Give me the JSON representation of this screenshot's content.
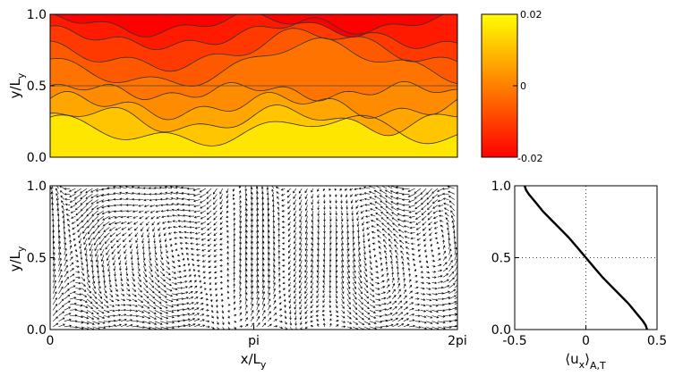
{
  "chart_data": [
    {
      "type": "heatmap",
      "panel": "top-left",
      "xlim": [
        0,
        6.2832
      ],
      "ylim": [
        0,
        1
      ],
      "y_ticks": [
        "0.0",
        "0.5",
        "1.0"
      ],
      "ylabel": {
        "main": "y/L",
        "sub": "y"
      },
      "color_range": [
        -0.02,
        0.02
      ],
      "colormap": [
        "#ff0000",
        "#ffff00"
      ],
      "colorbar_ticks": [
        "0.02",
        "0",
        "-0.02"
      ],
      "band_values": [
        0.016,
        0.011,
        0.006,
        0.002,
        -0.002,
        -0.006,
        -0.011,
        -0.016,
        -0.02
      ],
      "grid": false
    },
    {
      "type": "quiver",
      "panel": "bottom-left",
      "xlim": [
        0,
        6.2832
      ],
      "ylim": [
        0,
        1
      ],
      "x_ticks": [
        "0",
        "pi",
        "2pi"
      ],
      "y_ticks": [
        "0.0",
        "0.5",
        "1.0"
      ],
      "xlabel": {
        "main": "x/L",
        "sub": "y"
      },
      "ylabel": {
        "main": "y/L",
        "sub": "y"
      },
      "arrow_color": "#000000"
    },
    {
      "type": "line",
      "panel": "bottom-right",
      "xlim": [
        -0.5,
        0.5
      ],
      "ylim": [
        0,
        1
      ],
      "x_ticks": [
        "-0.5",
        "0",
        "0.5"
      ],
      "y_ticks": [
        "0.0",
        "0.5",
        "1.0"
      ],
      "xlabel": {
        "main": "⟨u",
        "mid": "x",
        "close": "⟩",
        "sub": "A,T"
      },
      "reference_lines": {
        "x": 0,
        "y": 0.5,
        "style": "dotted"
      },
      "series": [
        {
          "x": [
            0.43,
            0.42,
            0.4,
            0.35,
            0.3,
            0.24,
            0.18,
            0.12,
            0.06,
            0.0,
            -0.06,
            -0.12,
            -0.18,
            -0.24,
            -0.3,
            -0.35,
            -0.4,
            -0.42,
            -0.43
          ],
          "y": [
            0.0,
            0.03,
            0.06,
            0.12,
            0.18,
            0.24,
            0.3,
            0.36,
            0.43,
            0.5,
            0.57,
            0.64,
            0.7,
            0.76,
            0.82,
            0.88,
            0.94,
            0.97,
            1.0
          ]
        }
      ]
    }
  ]
}
